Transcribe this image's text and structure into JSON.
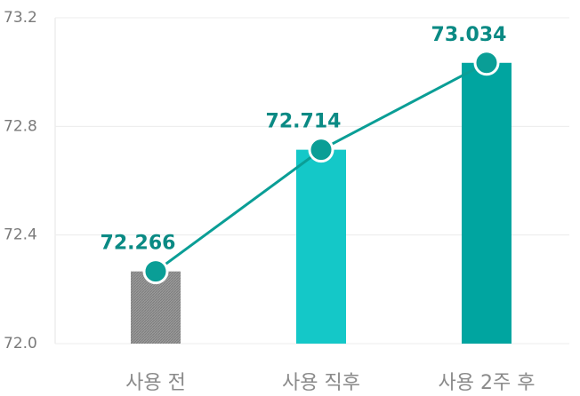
{
  "chart_data": {
    "type": "bar",
    "categories": [
      "사용 전",
      "사용 직후",
      "사용 2주 후"
    ],
    "values": [
      72.266,
      72.714,
      73.034
    ],
    "colors": [
      "#8c8c8c",
      "#14c8c8",
      "#00a5a0"
    ],
    "line_color": "#0a9e96",
    "ylim": [
      72.0,
      73.2
    ],
    "yticks": [
      {
        "value": 72.0,
        "label": "72.0"
      },
      72.4,
      72.8,
      73.2
    ],
    "grid": true
  }
}
